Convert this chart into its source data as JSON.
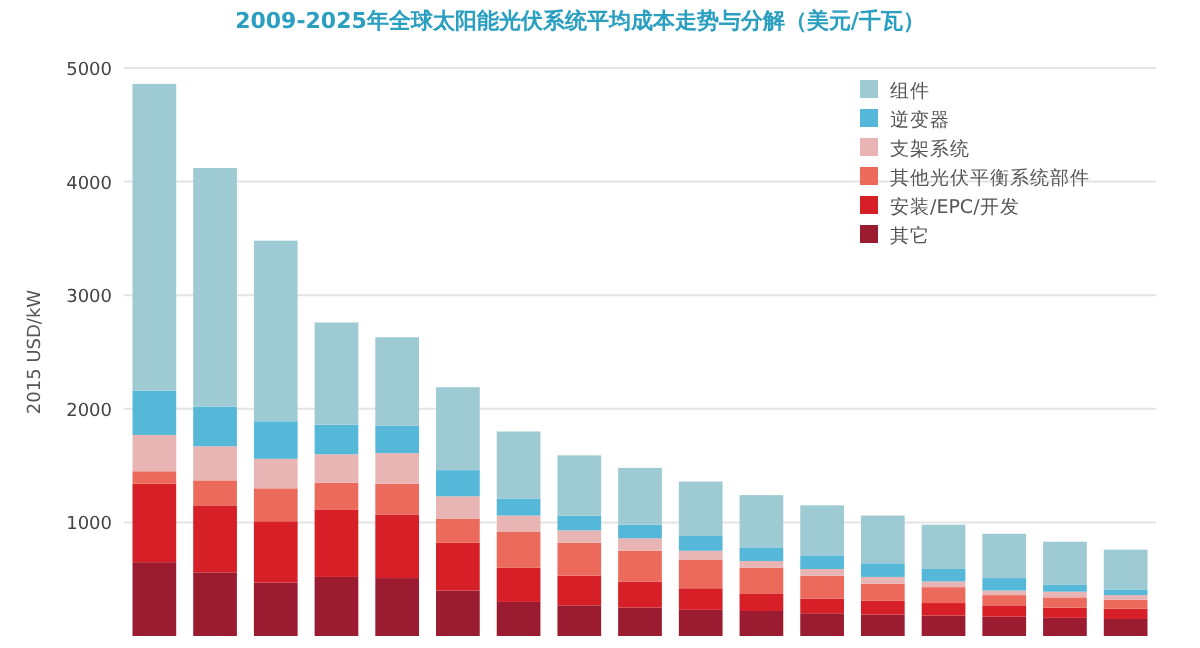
{
  "chart_data": {
    "type": "bar",
    "title": "2009-2025年全球太阳能光伏系统平均成本走势与分解（美元/千瓦）",
    "ylabel": "2015 USD/kW",
    "stacked": true,
    "grid": "y",
    "legend": "top right",
    "categories": [
      null,
      null,
      null,
      null,
      null,
      null,
      null,
      null,
      null,
      null,
      null,
      null,
      null,
      null,
      null,
      null,
      null
    ],
    "ylim": [
      0,
      5000
    ],
    "yticks": [
      1000,
      2000,
      3000,
      4000,
      5000
    ],
    "series": [
      {
        "name": "其它",
        "color": "#9b1b30",
        "values": [
          650,
          560,
          470,
          520,
          510,
          400,
          300,
          270,
          250,
          230,
          220,
          200,
          190,
          180,
          170,
          160,
          150
        ]
      },
      {
        "name": "安装/EPC/开发",
        "color": "#d71f27",
        "values": [
          690,
          590,
          540,
          590,
          560,
          420,
          300,
          260,
          230,
          190,
          150,
          130,
          120,
          110,
          100,
          90,
          90
        ]
      },
      {
        "name": "其他光伏平衡系统部件",
        "color": "#ec6a5c",
        "values": [
          110,
          220,
          290,
          240,
          270,
          210,
          320,
          290,
          270,
          250,
          230,
          200,
          150,
          140,
          90,
          90,
          80
        ]
      },
      {
        "name": "支架系统",
        "color": "#e8b4b4",
        "values": [
          320,
          300,
          260,
          250,
          270,
          200,
          140,
          110,
          110,
          80,
          60,
          60,
          60,
          50,
          40,
          50,
          40
        ]
      },
      {
        "name": "逆变器",
        "color": "#55b8d8",
        "values": [
          390,
          350,
          330,
          260,
          240,
          230,
          150,
          130,
          120,
          130,
          120,
          120,
          120,
          110,
          110,
          60,
          50
        ]
      },
      {
        "name": "组件",
        "color": "#9ecad3",
        "values": [
          2700,
          2100,
          1590,
          900,
          780,
          730,
          590,
          530,
          500,
          480,
          460,
          440,
          420,
          390,
          390,
          380,
          350
        ]
      }
    ]
  }
}
